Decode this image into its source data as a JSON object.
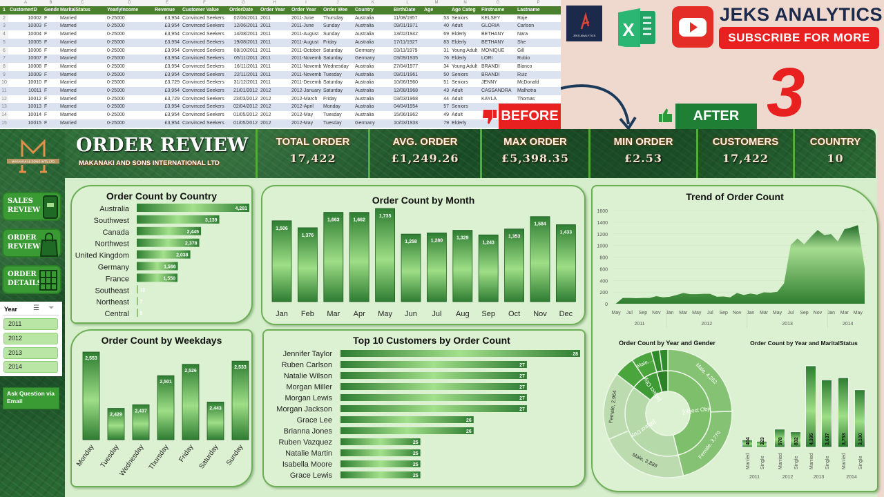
{
  "spreadsheet": {
    "col_letters": [
      "",
      "A",
      "B",
      "C",
      "D",
      "E",
      "F",
      "G",
      "H",
      "I",
      "J",
      "K",
      "L",
      "M",
      "N",
      "O",
      "P"
    ],
    "headers": [
      "CustomerID",
      "Gender",
      "MaritalStatus",
      "YearlyIncome",
      "Revenue",
      "Customer Value",
      "OrderDate",
      "Order Year",
      "Order Year",
      "Order Wee",
      "Country",
      "BirthDate",
      "Age",
      "Age Categ",
      "Firstname",
      "Lastname"
    ],
    "rows": [
      [
        "2",
        "10002",
        "F",
        "Married",
        "0-25000",
        "£3,954",
        "Convinced Seekers",
        "02/06/2011",
        "2011",
        "2011-June",
        "Thursday",
        "Australia",
        "11/08/1957",
        "53",
        "Seniors",
        "KELSEY",
        "Raje"
      ],
      [
        "3",
        "10003",
        "F",
        "Married",
        "0-25000",
        "£3,954",
        "Convinced Seekers",
        "12/06/2011",
        "2011",
        "2011-June",
        "Sunday",
        "Australia",
        "09/01/1971",
        "40",
        "Adult",
        "GLORIA",
        "Carlson"
      ],
      [
        "4",
        "10004",
        "F",
        "Married",
        "0-25000",
        "£3,954",
        "Convinced Seekers",
        "14/08/2011",
        "2011",
        "2011-August",
        "Sunday",
        "Australia",
        "13/02/1942",
        "69",
        "Elderly",
        "BETHANY",
        "Nara"
      ],
      [
        "5",
        "10005",
        "F",
        "Married",
        "0-25000",
        "£3,954",
        "Convinced Seekers",
        "19/08/2011",
        "2011",
        "2011-August",
        "Friday",
        "Australia",
        "17/11/1927",
        "83",
        "Elderly",
        "BETHANY",
        "She"
      ],
      [
        "6",
        "10006",
        "F",
        "Married",
        "0-25000",
        "£3,954",
        "Convinced Seekers",
        "08/10/2011",
        "2011",
        "2011-October",
        "Saturday",
        "Germany",
        "03/11/1979",
        "31",
        "Young Adult",
        "MONIQUE",
        "Gill"
      ],
      [
        "7",
        "10007",
        "F",
        "Married",
        "0-25000",
        "£3,954",
        "Convinced Seekers",
        "05/11/2011",
        "2011",
        "2011-Novemb",
        "Saturday",
        "Germany",
        "03/09/1935",
        "76",
        "Elderly",
        "LORI",
        "Rubio"
      ],
      [
        "8",
        "10008",
        "F",
        "Married",
        "0-25000",
        "£3,954",
        "Convinced Seekers",
        "16/11/2011",
        "2011",
        "2011-Novemb",
        "Wednesday",
        "Australia",
        "27/04/1977",
        "34",
        "Young Adult",
        "BRANDI",
        "Blanco"
      ],
      [
        "9",
        "10009",
        "F",
        "Married",
        "0-25000",
        "£3,954",
        "Convinced Seekers",
        "22/11/2011",
        "2011",
        "2011-Novemb",
        "Tuesday",
        "Australia",
        "09/01/1961",
        "50",
        "Seniors",
        "BRANDI",
        "Ruiz"
      ],
      [
        "10",
        "10010",
        "F",
        "Married",
        "0-25000",
        "£3,729",
        "Convinced Seekers",
        "31/12/2011",
        "2011",
        "2011-Decemb",
        "Saturday",
        "Australia",
        "10/06/1960",
        "51",
        "Seniors",
        "JENNY",
        "McDonald"
      ],
      [
        "11",
        "10011",
        "F",
        "Married",
        "0-25000",
        "£3,954",
        "Convinced Seekers",
        "21/01/2012",
        "2012",
        "2012-January",
        "Saturday",
        "Australia",
        "12/08/1968",
        "43",
        "Adult",
        "CASSANDRA",
        "Malhotra"
      ],
      [
        "12",
        "10012",
        "F",
        "Married",
        "0-25000",
        "£3,729",
        "Convinced Seekers",
        "23/03/2012",
        "2012",
        "2012-March",
        "Friday",
        "Australia",
        "03/03/1968",
        "44",
        "Adult",
        "KAYLA",
        "Thomas"
      ],
      [
        "13",
        "10013",
        "F",
        "Married",
        "0-25000",
        "£3,954",
        "Convinced Seekers",
        "02/04/2012",
        "2012",
        "2012-April",
        "Monday",
        "Australia",
        "04/04/1954",
        "57",
        "Seniors",
        "",
        ""
      ],
      [
        "14",
        "10014",
        "F",
        "Married",
        "0-25000",
        "£3,954",
        "Convinced Seekers",
        "01/05/2012",
        "2012",
        "2012-May",
        "Tuesday",
        "Australia",
        "15/06/1962",
        "49",
        "Adult",
        "",
        ""
      ],
      [
        "15",
        "10015",
        "F",
        "Married",
        "0-25000",
        "£3,954",
        "Convinced Seekers",
        "01/05/2012",
        "2012",
        "2012-May",
        "Tuesday",
        "Germany",
        "10/03/1933",
        "79",
        "Elderly",
        "",
        ""
      ]
    ]
  },
  "promo": {
    "brand": "JEKS ANALYTICS",
    "subscribe": "SUBSCRIBE FOR MORE",
    "number": "3",
    "before": "BEFORE",
    "after": "AFTER",
    "logo_text": "JEKS ANALYTICS",
    "excel_letter": "X"
  },
  "colors": {
    "dark_green": "#1e5a2a",
    "panel": "#dcf1d1",
    "accent": "#3a9a34",
    "red": "#e8201f",
    "navy": "#1b2a4a"
  },
  "header": {
    "title": "ORDER REVIEW",
    "subtitle": "MAKANAKI AND SONS INTERNATIONAL LTD",
    "logo_text": "MAKANAKI & SONS INT'L LTD",
    "kpis": [
      {
        "label": "TOTAL ORDER",
        "value": "17,422"
      },
      {
        "label": "AVG. ORDER",
        "value": "£1,249.26"
      },
      {
        "label": "MAX ORDER",
        "value": "£5,398.35"
      },
      {
        "label": "MIN ORDER",
        "value": "£2.53"
      },
      {
        "label": "CUSTOMERS",
        "value": "17,422"
      },
      {
        "label": "COUNTRY",
        "value": "10"
      }
    ]
  },
  "sidebar": {
    "nav": [
      {
        "line1": "SALES",
        "line2": "REVIEW",
        "icon": "cart-tablet-icon"
      },
      {
        "line1": "ORDER",
        "line2": "REVIEW",
        "icon": "shopping-bag-icon"
      },
      {
        "line1": "ORDER",
        "line2": "DETAILS",
        "icon": "grid-icon"
      }
    ],
    "slicer": {
      "title": "Year",
      "items": [
        "2011",
        "2012",
        "2013",
        "2014"
      ]
    },
    "ask": "Ask Question via Email"
  },
  "chart_data": [
    {
      "id": "country",
      "type": "bar",
      "orientation": "horizontal",
      "title": "Order Count by Country",
      "categories": [
        "Australia",
        "Southwest",
        "Canada",
        "Northwest",
        "United Kingdom",
        "Germany",
        "France",
        "Southeast",
        "Northeast",
        "Central"
      ],
      "values": [
        4281,
        3139,
        2445,
        2378,
        2038,
        1566,
        1550,
        32,
        7,
        5
      ],
      "value_labels": [
        "4,281",
        "3,139",
        "2,445",
        "2,378",
        "2,038",
        "1,566",
        "1,550",
        "32",
        "7",
        "5"
      ]
    },
    {
      "id": "month",
      "type": "bar",
      "title": "Order Count by Month",
      "categories": [
        "Jan",
        "Feb",
        "Mar",
        "Apr",
        "May",
        "Jun",
        "Jul",
        "Aug",
        "Sep",
        "Oct",
        "Nov",
        "Dec"
      ],
      "values": [
        1506,
        1376,
        1663,
        1662,
        1735,
        1258,
        1280,
        1329,
        1243,
        1353,
        1584,
        1433
      ],
      "value_labels": [
        "1,506",
        "1,376",
        "1,663",
        "1,662",
        "1,735",
        "1,258",
        "1,280",
        "1,329",
        "1,243",
        "1,353",
        "1,584",
        "1,433"
      ],
      "ylim": [
        0,
        1735
      ]
    },
    {
      "id": "weekday",
      "type": "bar",
      "title": "Order Count by Weekdays",
      "categories": [
        "Monday",
        "Tuesday",
        "Wednesday",
        "Thursday",
        "Friday",
        "Saturday",
        "Sunday"
      ],
      "values": [
        2553,
        2429,
        2437,
        2501,
        2526,
        2443,
        2533
      ],
      "value_labels": [
        "2,553",
        "2,429",
        "2,437",
        "2,501",
        "2,526",
        "2,443",
        "2,533"
      ],
      "ylim": [
        2360,
        2553
      ]
    },
    {
      "id": "top10",
      "type": "bar",
      "orientation": "horizontal",
      "title": "Top 10 Customers by Order Count",
      "categories": [
        "Jennifer Taylor",
        "Ruben Carlson",
        "Natalie Wilson",
        "Morgan Miller",
        "Morgan Lewis",
        "Morgan Jackson",
        "Grace Lee",
        "Brianna Jones",
        "Ruben Vazquez",
        "Natalie Martin",
        "Isabella Moore",
        "Grace Lewis"
      ],
      "values": [
        28,
        27,
        27,
        27,
        27,
        27,
        26,
        26,
        25,
        25,
        25,
        25
      ],
      "xlim": [
        23.5,
        28
      ]
    },
    {
      "id": "trend",
      "type": "area",
      "title": "Trend of Order Count",
      "ylim": [
        0,
        1600
      ],
      "yticks": [
        "0",
        "200",
        "400",
        "600",
        "800",
        "1000",
        "1200",
        "1400",
        "1600"
      ],
      "x": [
        "2011-05",
        "2011-06",
        "2011-07",
        "2011-08",
        "2011-09",
        "2011-10",
        "2011-11",
        "2011-12",
        "2012-01",
        "2012-02",
        "2012-03",
        "2012-04",
        "2012-05",
        "2012-06",
        "2012-07",
        "2012-08",
        "2012-09",
        "2012-10",
        "2012-11",
        "2012-12",
        "2013-01",
        "2013-02",
        "2013-03",
        "2013-04",
        "2013-05",
        "2013-06",
        "2013-07",
        "2013-08",
        "2013-09",
        "2013-10",
        "2013-11",
        "2013-12",
        "2014-01",
        "2014-02",
        "2014-03",
        "2014-04",
        "2014-05",
        "2014-06"
      ],
      "values": [
        5,
        100,
        100,
        95,
        100,
        100,
        130,
        110,
        120,
        150,
        185,
        165,
        165,
        170,
        170,
        120,
        125,
        110,
        185,
        150,
        175,
        155,
        195,
        190,
        205,
        350,
        1010,
        1120,
        1020,
        1150,
        1265,
        1180,
        1195,
        1070,
        1280,
        1310,
        1350,
        620
      ],
      "month_ticks": [
        "May",
        "Jul",
        "Sep",
        "Nov",
        "Jan",
        "Mar",
        "May",
        "Jul",
        "Sep",
        "Nov",
        "Jan",
        "Mar",
        "May",
        "Jul",
        "Sep",
        "Nov",
        "Jan",
        "Mar",
        "May"
      ],
      "year_ticks": [
        "2011",
        "2012",
        "2013",
        "2014"
      ],
      "grid": true
    },
    {
      "id": "gender",
      "type": "pie",
      "subtype": "sunburst",
      "title": "Order Count by Year and Gender",
      "inner": [
        {
          "label": "2013",
          "value": 8032
        },
        {
          "label": "2014",
          "value": 6853
        },
        {
          "label": "2012",
          "value": 1810
        },
        {
          "label": "2011",
          "value": 727
        }
      ],
      "outer": [
        {
          "label": "Male, 4,262",
          "value": 4262
        },
        {
          "label": "Female, 3,770",
          "value": 3770
        },
        {
          "label": "Male, 3,889",
          "value": 3889
        },
        {
          "label": "Female, 2,964",
          "value": 2964
        },
        {
          "label": "",
          "value": 905
        },
        {
          "label": "Male,...",
          "value": 905
        },
        {
          "label": "",
          "value": 364
        },
        {
          "label": "",
          "value": 363
        }
      ]
    },
    {
      "id": "marital",
      "type": "bar",
      "title": "Order Count by Year and MaritalStatus",
      "categories": [
        "Married",
        "Single",
        "Married",
        "Single",
        "Married",
        "Single",
        "Married",
        "Single"
      ],
      "groups": [
        "2011",
        "2012",
        "2013",
        "2014"
      ],
      "values": [
        404,
        323,
        978,
        832,
        4395,
        3637,
        3753,
        3100
      ],
      "value_labels": [
        "404",
        "323",
        "978",
        "832",
        "4,395",
        "3,637",
        "3,753",
        "3,100"
      ],
      "ylim": [
        0,
        4395
      ]
    }
  ]
}
